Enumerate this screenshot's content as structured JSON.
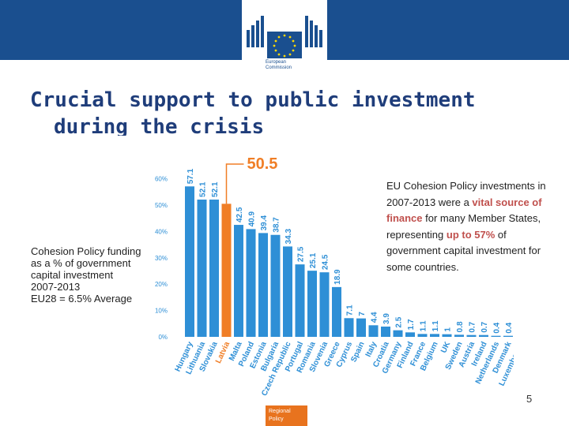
{
  "header": {
    "logo_text": [
      "European",
      "Commission"
    ]
  },
  "title": [
    "Crucial support to public investment",
    "during the crisis"
  ],
  "left_note": [
    "Cohesion Policy funding",
    "as a % of government",
    "capital investment",
    "2007-2013",
    "EU28 = 6.5% Average"
  ],
  "right_note": {
    "l1": "EU Cohesion Policy investments in",
    "l2a": "2007-2013 were a ",
    "l2b": "vital source of",
    "l3a": "finance",
    "l3b": " for many Member States,",
    "l4a": "representing ",
    "l4b": "up to 57%",
    "l4c": " of",
    "l5": "government capital investment for",
    "l6": "some countries."
  },
  "page_number": "5",
  "footer": [
    "Regional",
    "Policy"
  ],
  "colors": {
    "bar": "#2e8fd6",
    "highlight": "#f07e26",
    "title": "#1f3d7a",
    "header": "#1a4f8f"
  },
  "chart_data": {
    "type": "bar",
    "categories": [
      "Hungary",
      "Lithuania",
      "Slovakia",
      "Latvia",
      "Malta",
      "Poland",
      "Estonia",
      "Bulgaria",
      "Czech Republic",
      "Portugal",
      "Romania",
      "Slovenia",
      "Greece",
      "Cyprus",
      "Spain",
      "Italy",
      "Croatia",
      "Germany",
      "Finland",
      "France",
      "Belgium",
      "UK",
      "Sweden",
      "Austria",
      "Ireland",
      "Netherlands",
      "Denmark",
      "Luxembourg"
    ],
    "values": [
      57.1,
      52.1,
      52.1,
      50.5,
      42.5,
      40.9,
      39.4,
      38.7,
      34.3,
      27.5,
      25.1,
      24.5,
      18.9,
      7.1,
      7,
      4.4,
      3.9,
      2.5,
      1.7,
      1.1,
      1.1,
      1,
      0.8,
      0.7,
      0.7,
      0.4,
      0.4,
      0.2
    ],
    "value_labels": [
      "57.1",
      "52.1",
      "52.1",
      "50.5",
      "42.5",
      "40.9",
      "39.4",
      "38.7",
      "34.3",
      "27.5",
      "25.1",
      "24.5",
      "18.9",
      "7.1",
      "7",
      "4.4",
      "3.9",
      "2.5",
      "1.7",
      "1.1",
      "1.1",
      "1",
      "0.8",
      "0.7",
      "0.7",
      "0.4",
      "0.4",
      "0.2"
    ],
    "highlight": "Latvia",
    "yticks": [
      "0%",
      "10%",
      "20%",
      "30%",
      "40%",
      "50%",
      "60%"
    ],
    "ylim": [
      0,
      60
    ]
  }
}
